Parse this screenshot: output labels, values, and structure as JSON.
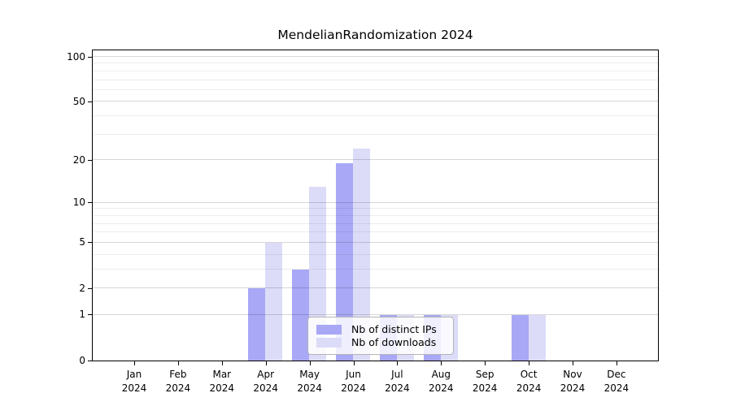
{
  "title": "MendelianRandomization 2024",
  "legend": {
    "items": [
      {
        "label": "Nb of distinct IPs",
        "color": "#a8a8f6"
      },
      {
        "label": "Nb of downloads",
        "color": "#dcdcf8"
      }
    ]
  },
  "chart_data": {
    "type": "bar",
    "title": "MendelianRandomization 2024",
    "categories": [
      "Jan",
      "Feb",
      "Mar",
      "Apr",
      "May",
      "Jun",
      "Jul",
      "Aug",
      "Sep",
      "Oct",
      "Nov",
      "Dec"
    ],
    "year_label": "2024",
    "series": [
      {
        "name": "Nb of distinct IPs",
        "color": "#a8a8f6",
        "values": [
          0,
          0,
          0,
          2,
          3,
          19,
          1,
          1,
          0,
          1,
          0,
          0
        ]
      },
      {
        "name": "Nb of downloads",
        "color": "#dcdcf8",
        "values": [
          0,
          0,
          0,
          5,
          13,
          24,
          1,
          1,
          0,
          1,
          0,
          0
        ]
      }
    ],
    "xlabel": "",
    "ylabel": "",
    "y_axis": {
      "scale": "log10(1+x)",
      "tick_values": [
        0,
        1,
        2,
        5,
        10,
        20,
        50,
        100
      ],
      "tick_labels": [
        "0",
        "1",
        "2",
        "5",
        "10",
        "20",
        "50",
        "100"
      ],
      "minor_gridline_values": [
        3,
        4,
        6,
        7,
        8,
        9,
        30,
        40,
        60,
        70,
        80,
        90
      ],
      "ylim": [
        0,
        110
      ]
    },
    "grid": "on",
    "legend_position": "inside-bottom-center",
    "bar_group": "paired side-by-side per month"
  }
}
